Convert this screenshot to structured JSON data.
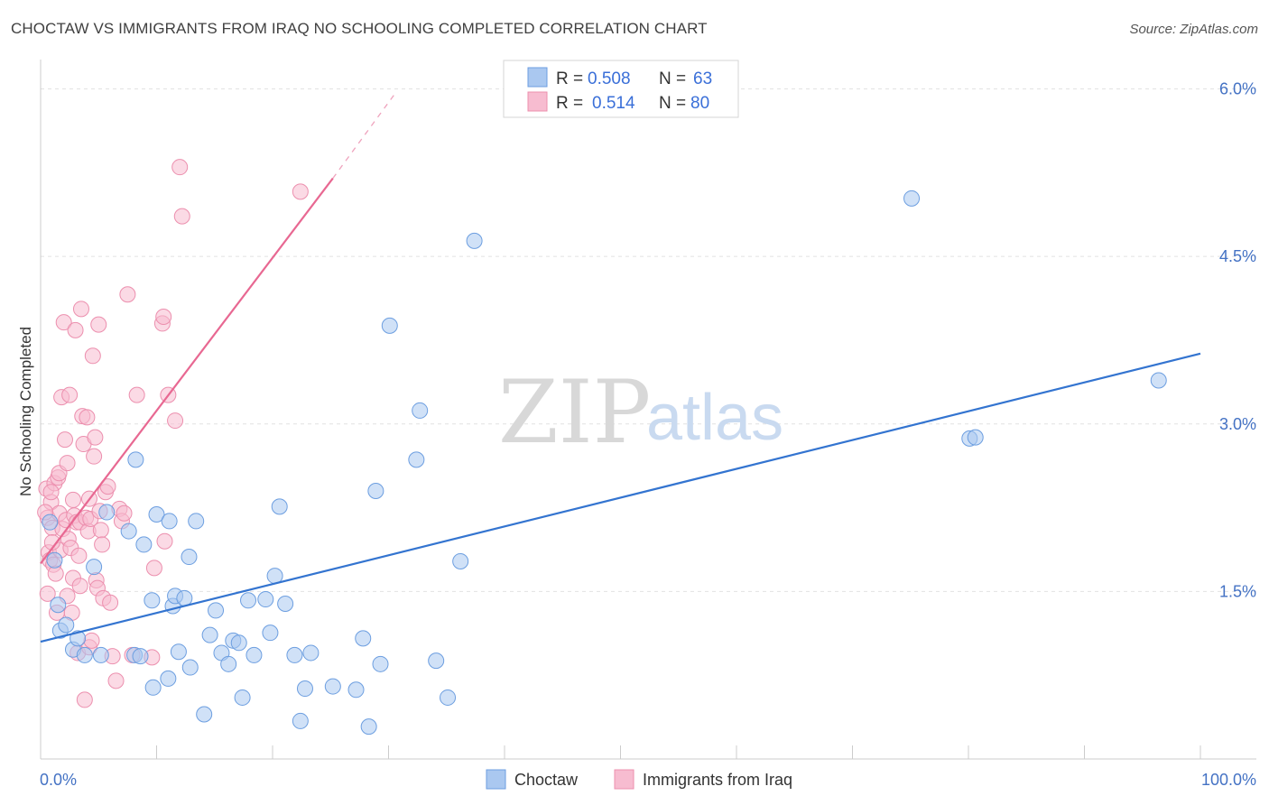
{
  "header": {
    "title": "CHOCTAW VS IMMIGRANTS FROM IRAQ NO SCHOOLING COMPLETED CORRELATION CHART",
    "source": "Source: ZipAtlas.com"
  },
  "watermark": {
    "zip": "ZIP",
    "atlas": "atlas"
  },
  "colors": {
    "blue_fill": "#aac8f0",
    "blue_stroke": "#6c9ee0",
    "blue_line": "#3374d0",
    "pink_fill": "#f7bcd0",
    "pink_stroke": "#ec8fae",
    "pink_line": "#e86892",
    "tick_text": "#4472c4",
    "grid": "#e2e2e2"
  },
  "legend": {
    "items": [
      {
        "r_label": "R =",
        "r_value": "0.508",
        "n_label": "N =",
        "n_value": "63",
        "color": "blue"
      },
      {
        "r_label": "R =",
        "r_value": "0.514",
        "n_label": "N =",
        "n_value": "80",
        "color": "pink"
      }
    ]
  },
  "bottom_legend": {
    "items": [
      {
        "label": "Choctaw",
        "color": "blue"
      },
      {
        "label": "Immigrants from Iraq",
        "color": "pink"
      }
    ]
  },
  "chart_data": {
    "type": "scatter",
    "ylabel": "No Schooling Completed",
    "xlim": [
      0,
      100
    ],
    "ylim": [
      0,
      6.15
    ],
    "x_tick_labels": [
      {
        "value": 0,
        "label": "0.0%"
      },
      {
        "value": 100,
        "label": "100.0%"
      }
    ],
    "y_tick_labels": [
      {
        "value": 1.5,
        "label": "1.5%"
      },
      {
        "value": 3.0,
        "label": "3.0%"
      },
      {
        "value": 4.5,
        "label": "4.5%"
      },
      {
        "value": 6.0,
        "label": "6.0%"
      }
    ],
    "grid": true,
    "legend_position": "top-center",
    "series": [
      {
        "name": "Choctaw",
        "color": "#aac8f0",
        "points": [
          [
            0.8,
            2.12
          ],
          [
            1.2,
            1.78
          ],
          [
            1.5,
            1.38
          ],
          [
            1.7,
            1.15
          ],
          [
            2.2,
            1.2
          ],
          [
            2.8,
            0.98
          ],
          [
            3.2,
            1.08
          ],
          [
            3.8,
            0.93
          ],
          [
            4.6,
            1.72
          ],
          [
            5.2,
            0.93
          ],
          [
            5.7,
            2.21
          ],
          [
            7.6,
            2.04
          ],
          [
            8.1,
            0.93
          ],
          [
            8.6,
            0.92
          ],
          [
            8.2,
            2.68
          ],
          [
            8.9,
            1.92
          ],
          [
            9.6,
            1.42
          ],
          [
            9.7,
            0.64
          ],
          [
            10.0,
            2.19
          ],
          [
            11.0,
            0.72
          ],
          [
            11.4,
            1.37
          ],
          [
            11.1,
            2.13
          ],
          [
            11.6,
            1.46
          ],
          [
            11.9,
            0.96
          ],
          [
            12.4,
            1.44
          ],
          [
            12.8,
            1.81
          ],
          [
            12.9,
            0.82
          ],
          [
            13.4,
            2.13
          ],
          [
            14.1,
            0.4
          ],
          [
            14.6,
            1.11
          ],
          [
            15.1,
            1.33
          ],
          [
            15.6,
            0.95
          ],
          [
            16.2,
            0.85
          ],
          [
            16.6,
            1.06
          ],
          [
            17.1,
            1.04
          ],
          [
            17.4,
            0.55
          ],
          [
            17.9,
            1.42
          ],
          [
            18.4,
            0.93
          ],
          [
            19.4,
            1.43
          ],
          [
            19.8,
            1.13
          ],
          [
            20.2,
            1.64
          ],
          [
            20.6,
            2.26
          ],
          [
            21.1,
            1.39
          ],
          [
            21.9,
            0.93
          ],
          [
            22.4,
            0.34
          ],
          [
            22.8,
            0.63
          ],
          [
            23.3,
            0.95
          ],
          [
            25.2,
            0.65
          ],
          [
            27.2,
            0.62
          ],
          [
            27.8,
            1.08
          ],
          [
            28.3,
            0.29
          ],
          [
            28.9,
            2.4
          ],
          [
            29.3,
            0.85
          ],
          [
            30.1,
            3.88
          ],
          [
            32.4,
            2.68
          ],
          [
            32.7,
            3.12
          ],
          [
            34.1,
            0.88
          ],
          [
            35.1,
            0.55
          ],
          [
            36.2,
            1.77
          ],
          [
            37.4,
            4.64
          ],
          [
            75.1,
            5.02
          ],
          [
            80.1,
            2.87
          ],
          [
            80.6,
            2.88
          ]
        ],
        "extra_points": [
          [
            96.4,
            3.39
          ]
        ],
        "trend": {
          "x": [
            0,
            100
          ],
          "y": [
            1.05,
            3.63
          ]
        }
      },
      {
        "name": "Immigrants from Iraq",
        "color": "#f7bcd0",
        "points": [
          [
            0.5,
            2.42
          ],
          [
            0.6,
            2.16
          ],
          [
            0.7,
            1.85
          ],
          [
            0.8,
            1.78
          ],
          [
            0.9,
            2.3
          ],
          [
            1.0,
            2.07
          ],
          [
            1.1,
            1.74
          ],
          [
            1.2,
            2.47
          ],
          [
            1.3,
            1.66
          ],
          [
            1.4,
            1.31
          ],
          [
            1.5,
            2.52
          ],
          [
            1.6,
            2.2
          ],
          [
            1.7,
            1.87
          ],
          [
            1.8,
            3.24
          ],
          [
            1.9,
            2.06
          ],
          [
            2.0,
            3.91
          ],
          [
            2.1,
            2.86
          ],
          [
            2.2,
            2.14
          ],
          [
            2.3,
            1.46
          ],
          [
            2.4,
            1.97
          ],
          [
            2.5,
            3.26
          ],
          [
            2.6,
            1.89
          ],
          [
            2.7,
            1.31
          ],
          [
            2.8,
            2.32
          ],
          [
            2.9,
            2.18
          ],
          [
            3.0,
            3.84
          ],
          [
            3.1,
            2.12
          ],
          [
            3.2,
            0.95
          ],
          [
            3.3,
            1.82
          ],
          [
            3.4,
            2.12
          ],
          [
            3.5,
            4.03
          ],
          [
            3.6,
            3.07
          ],
          [
            3.7,
            2.82
          ],
          [
            3.8,
            0.53
          ],
          [
            3.9,
            2.16
          ],
          [
            4.0,
            3.06
          ],
          [
            4.1,
            2.04
          ],
          [
            4.2,
            1.0
          ],
          [
            4.3,
            2.15
          ],
          [
            4.4,
            1.06
          ],
          [
            4.5,
            3.61
          ],
          [
            4.6,
            2.71
          ],
          [
            4.7,
            2.88
          ],
          [
            4.8,
            1.6
          ],
          [
            4.9,
            1.53
          ],
          [
            5.0,
            3.89
          ],
          [
            5.1,
            2.22
          ],
          [
            5.2,
            2.05
          ],
          [
            5.3,
            1.92
          ],
          [
            5.4,
            1.44
          ],
          [
            5.6,
            2.39
          ],
          [
            5.8,
            2.44
          ],
          [
            6.0,
            1.4
          ],
          [
            6.2,
            0.92
          ],
          [
            6.5,
            0.7
          ],
          [
            6.8,
            2.24
          ],
          [
            7.0,
            2.13
          ],
          [
            7.2,
            2.2
          ],
          [
            7.5,
            4.16
          ],
          [
            7.9,
            0.93
          ],
          [
            8.3,
            3.26
          ],
          [
            9.6,
            0.91
          ],
          [
            9.8,
            1.71
          ],
          [
            10.5,
            3.9
          ],
          [
            10.6,
            3.96
          ],
          [
            10.7,
            1.95
          ],
          [
            11.0,
            3.26
          ],
          [
            11.6,
            3.03
          ],
          [
            12.0,
            5.3
          ],
          [
            12.2,
            4.86
          ],
          [
            22.4,
            5.08
          ],
          [
            0.6,
            1.48
          ],
          [
            1.0,
            1.94
          ],
          [
            1.6,
            2.56
          ],
          [
            2.3,
            2.65
          ],
          [
            2.8,
            1.62
          ],
          [
            3.4,
            1.55
          ],
          [
            4.2,
            2.33
          ],
          [
            0.4,
            2.21
          ],
          [
            0.9,
            2.39
          ]
        ],
        "trend": {
          "x": [
            0,
            25.2
          ],
          "y": [
            1.75,
            5.2
          ]
        },
        "trend_dashed": {
          "x": [
            25.2,
            30.5
          ],
          "y": [
            5.2,
            5.95
          ]
        }
      }
    ]
  }
}
